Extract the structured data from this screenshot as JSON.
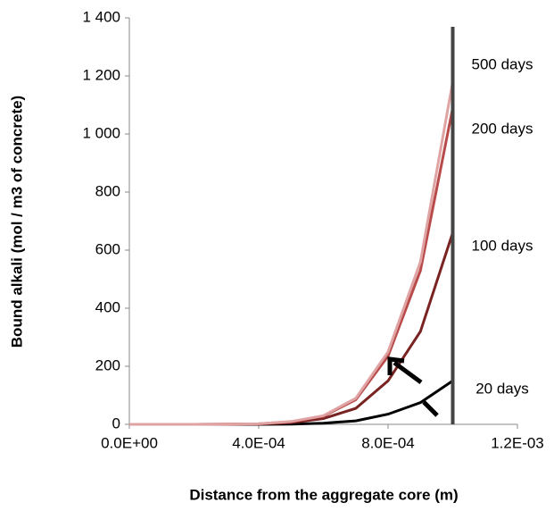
{
  "chart_data": {
    "type": "line",
    "x_label": "Distance from the aggregate core (m)",
    "y_label": "Bound alkali (mol / m3 of concrete)",
    "x": [
      0,
      0.0002,
      0.0004,
      0.0005,
      0.0006,
      0.0007,
      0.0008,
      0.0009,
      0.001
    ],
    "series": [
      {
        "name": "500 days",
        "color": "#e0a3a3",
        "values": [
          0,
          0,
          2,
          10,
          30,
          90,
          250,
          560,
          1180
        ]
      },
      {
        "name": "200 days",
        "color": "#b84a4a",
        "values": [
          0,
          0,
          2,
          9,
          28,
          85,
          235,
          530,
          1090
        ]
      },
      {
        "name": "100 days",
        "color": "#7a2323",
        "values": [
          0,
          0,
          1,
          6,
          20,
          55,
          150,
          320,
          660
        ]
      },
      {
        "name": "20 days",
        "color": "#000000",
        "values": [
          0,
          0,
          0,
          1,
          4,
          12,
          35,
          75,
          150
        ]
      }
    ],
    "boundary_x": 0.001,
    "xlim": [
      0,
      0.0012
    ],
    "xticks": [
      {
        "value": 0,
        "label": "0.0E+00"
      },
      {
        "value": 0.0004,
        "label": "4.0E-04"
      },
      {
        "value": 0.0008,
        "label": "8.0E-04"
      },
      {
        "value": 0.0012,
        "label": "1.2E-03"
      }
    ],
    "ylim": [
      0,
      1400
    ],
    "yticks": [
      0,
      200,
      400,
      600,
      800,
      {
        "value": 1000,
        "label": "1 000"
      },
      {
        "value": 1200,
        "label": "1 200"
      },
      {
        "value": 1400,
        "label": "1 400"
      }
    ],
    "grid": false
  }
}
